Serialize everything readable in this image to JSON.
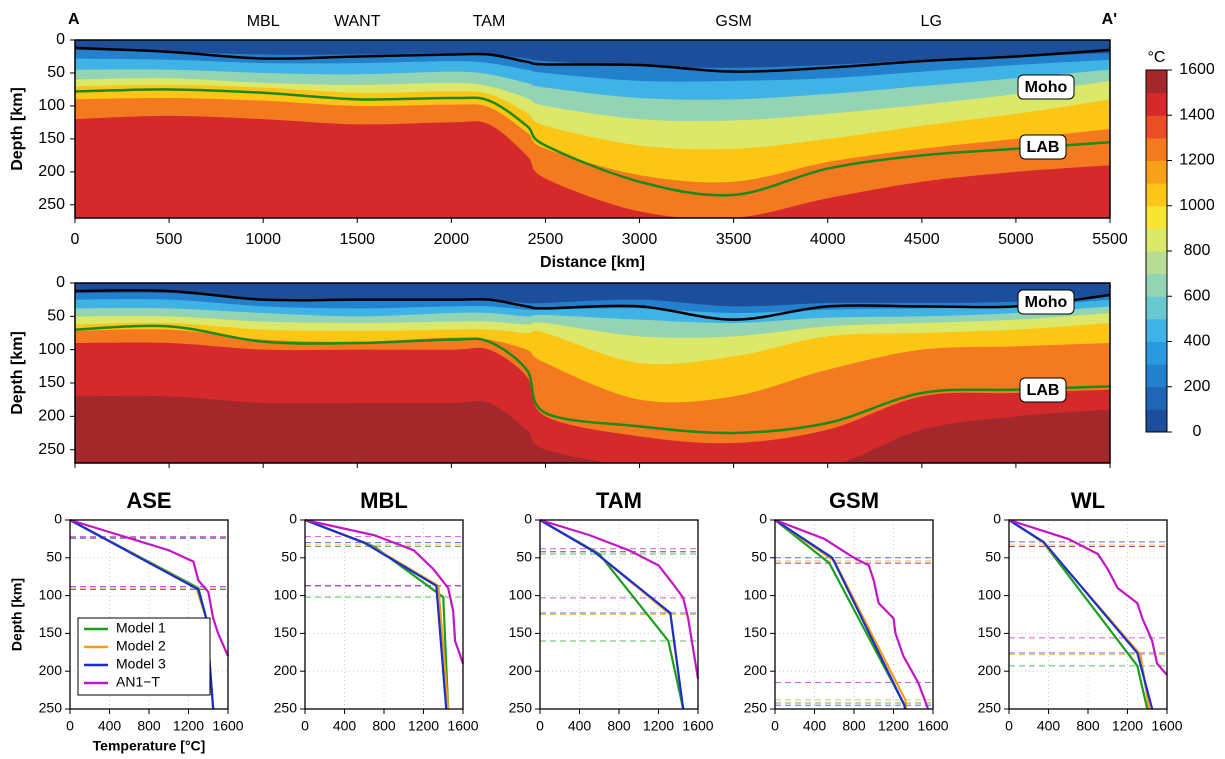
{
  "chart_data": [
    {
      "type": "section",
      "y_label": "Depth [km]",
      "x_label": "Distance [km]",
      "show_xtick_labels": true,
      "xlim": [
        0,
        5500
      ],
      "xticks": [
        0,
        500,
        1000,
        1500,
        2000,
        2500,
        3000,
        3500,
        4000,
        4500,
        5000,
        5500
      ],
      "ylim": [
        0,
        270
      ],
      "y_inverted": true,
      "yticks": [
        0,
        50,
        100,
        150,
        200,
        250
      ],
      "end_labels": [
        "A",
        "A'"
      ],
      "locations": [
        {
          "label": "MBL",
          "x": 1000
        },
        {
          "label": "WANT",
          "x": 1500
        },
        {
          "label": "TAM",
          "x": 2200
        },
        {
          "label": "GSM",
          "x": 3500
        },
        {
          "label": "LG",
          "x": 4550
        }
      ],
      "x": [
        0,
        500,
        1000,
        1500,
        2000,
        2200,
        2400,
        2500,
        3000,
        3500,
        4000,
        4500,
        5000,
        5500
      ],
      "base_color": "#1d4e9c",
      "isotherms": [
        {
          "color": "#2280cc",
          "values": [
            15,
            18,
            22,
            22,
            20,
            22,
            28,
            32,
            40,
            42,
            38,
            30,
            25,
            20
          ]
        },
        {
          "color": "#3fb3e5",
          "values": [
            28,
            30,
            35,
            35,
            32,
            35,
            45,
            50,
            62,
            62,
            58,
            48,
            38,
            30
          ]
        },
        {
          "color": "#93d4b5",
          "values": [
            45,
            45,
            50,
            52,
            48,
            52,
            65,
            72,
            88,
            90,
            82,
            70,
            58,
            45
          ]
        },
        {
          "color": "#dbe86a",
          "values": [
            60,
            58,
            65,
            68,
            65,
            70,
            88,
            100,
            120,
            122,
            112,
            98,
            82,
            62
          ]
        },
        {
          "color": "#fcc615",
          "values": [
            70,
            68,
            72,
            80,
            78,
            82,
            110,
            130,
            160,
            165,
            150,
            130,
            112,
            90
          ]
        },
        {
          "color": "#f47a20",
          "values": [
            90,
            88,
            92,
            100,
            98,
            102,
            140,
            165,
            205,
            215,
            185,
            165,
            150,
            135
          ]
        },
        {
          "color": "#d42a2b",
          "values": [
            120,
            115,
            120,
            128,
            125,
            128,
            175,
            210,
            260,
            270,
            240,
            215,
            200,
            190
          ]
        }
      ],
      "moho": {
        "name": "Moho",
        "color": "#000000",
        "values": [
          12,
          18,
          28,
          25,
          22,
          22,
          33,
          37,
          38,
          48,
          42,
          32,
          25,
          15
        ]
      },
      "lab": {
        "name": "LAB",
        "color": "#1a8a1a",
        "values": [
          78,
          75,
          80,
          90,
          88,
          92,
          130,
          160,
          215,
          235,
          195,
          175,
          165,
          155
        ]
      }
    },
    {
      "type": "section",
      "y_label": "Depth [km]",
      "show_xtick_labels": false,
      "xlim": [
        0,
        5500
      ],
      "xticks": [
        0,
        500,
        1000,
        1500,
        2000,
        2500,
        3000,
        3500,
        4000,
        4500,
        5000,
        5500
      ],
      "ylim": [
        0,
        270
      ],
      "y_inverted": true,
      "yticks": [
        0,
        50,
        100,
        150,
        200,
        250
      ],
      "x": [
        0,
        500,
        1000,
        1500,
        2000,
        2200,
        2400,
        2500,
        3000,
        3500,
        4000,
        4500,
        5000,
        5500
      ],
      "base_color": "#1d4e9c",
      "isotherms": [
        {
          "color": "#2280cc",
          "values": [
            15,
            15,
            25,
            25,
            25,
            25,
            30,
            30,
            25,
            35,
            30,
            30,
            28,
            18
          ]
        },
        {
          "color": "#3fb3e5",
          "values": [
            25,
            25,
            35,
            38,
            35,
            35,
            40,
            40,
            38,
            45,
            40,
            38,
            35,
            25
          ]
        },
        {
          "color": "#93d4b5",
          "values": [
            38,
            38,
            45,
            50,
            45,
            45,
            50,
            48,
            55,
            60,
            52,
            50,
            45,
            35
          ]
        },
        {
          "color": "#dbe86a",
          "values": [
            50,
            50,
            58,
            60,
            58,
            58,
            62,
            60,
            80,
            80,
            65,
            60,
            55,
            45
          ]
        },
        {
          "color": "#fcc615",
          "values": [
            62,
            60,
            70,
            72,
            70,
            70,
            75,
            75,
            120,
            110,
            80,
            75,
            70,
            60
          ]
        },
        {
          "color": "#f47a20",
          "values": [
            72,
            70,
            85,
            88,
            82,
            85,
            100,
            120,
            175,
            170,
            130,
            100,
            95,
            90
          ]
        },
        {
          "color": "#d42a2b",
          "values": [
            90,
            90,
            100,
            100,
            100,
            100,
            140,
            200,
            230,
            240,
            220,
            170,
            165,
            160
          ]
        },
        {
          "color": "#a3282c",
          "values": [
            170,
            170,
            180,
            180,
            180,
            180,
            220,
            250,
            275,
            275,
            275,
            220,
            200,
            190
          ]
        }
      ],
      "moho": {
        "name": "Moho",
        "color": "#000000",
        "values": [
          12,
          12,
          25,
          25,
          25,
          25,
          35,
          38,
          35,
          55,
          35,
          35,
          35,
          18
        ]
      },
      "lab": {
        "name": "LAB",
        "color": "#1a8a1a",
        "values": [
          70,
          65,
          88,
          90,
          85,
          88,
          130,
          195,
          215,
          225,
          210,
          165,
          160,
          155
        ]
      }
    },
    {
      "type": "colorbar",
      "label": "°C",
      "lim": [
        0,
        1600
      ],
      "ticks": [
        0,
        200,
        400,
        600,
        800,
        1000,
        1200,
        1400,
        1600
      ],
      "colors": [
        "#1d4e9c",
        "#1f66b5",
        "#2280cc",
        "#2a9ade",
        "#3fb3e5",
        "#6cc8d0",
        "#93d4b5",
        "#b8de95",
        "#dbe86a",
        "#f7e535",
        "#fcc615",
        "#f9a01a",
        "#f47a20",
        "#e94e25",
        "#d42a2b",
        "#a3282c"
      ]
    },
    {
      "type": "profile",
      "title": "ASE",
      "y_label": "Depth [km]",
      "x_label": "Temperature [°C]",
      "grid": true,
      "xlim": [
        0,
        1600
      ],
      "xticks": [
        0,
        400,
        800,
        1200,
        1600
      ],
      "ylim": [
        0,
        250
      ],
      "y_inverted": true,
      "yticks": [
        0,
        50,
        100,
        150,
        200,
        250
      ],
      "series": [
        {
          "name": "Model 1",
          "color": "#1aa01a",
          "x": [
            0,
            1300,
            1380,
            1450
          ],
          "y": [
            0,
            90,
            130,
            250
          ],
          "moho": 24,
          "lab": 90
        },
        {
          "name": "Model 2",
          "color": "#f39c12",
          "x": [
            0,
            1280,
            1380,
            1450
          ],
          "y": [
            0,
            90,
            130,
            250
          ],
          "moho": 23,
          "lab": 90
        },
        {
          "name": "Model 3",
          "color": "#1a2fd0",
          "x": [
            0,
            1300,
            1380,
            1450
          ],
          "y": [
            0,
            92,
            130,
            250
          ],
          "moho": 24,
          "lab": 92
        },
        {
          "name": "AN1−T",
          "color": "#c414c8",
          "x": [
            0,
            500,
            1000,
            1250,
            1300,
            1400,
            1450,
            1500,
            1600
          ],
          "y": [
            0,
            20,
            40,
            55,
            80,
            95,
            130,
            150,
            180
          ],
          "moho": 22,
          "lab": 88
        }
      ]
    },
    {
      "type": "profile",
      "title": "MBL",
      "grid": true,
      "xlim": [
        0,
        1600
      ],
      "xticks": [
        0,
        400,
        800,
        1200,
        1600
      ],
      "ylim": [
        0,
        250
      ],
      "y_inverted": true,
      "yticks": [
        0,
        50,
        100,
        150,
        200,
        250
      ],
      "series": [
        {
          "color": "#1aa01a",
          "x": [
            0,
            700,
            1400,
            1450
          ],
          "y": [
            0,
            35,
            102,
            250
          ],
          "moho": 35,
          "lab": 102
        },
        {
          "color": "#f39c12",
          "x": [
            0,
            650,
            1350,
            1450
          ],
          "y": [
            0,
            33,
            87,
            250
          ],
          "moho": 33,
          "lab": 87
        },
        {
          "color": "#1a2fd0",
          "x": [
            0,
            600,
            1330,
            1430
          ],
          "y": [
            0,
            30,
            87,
            250
          ],
          "moho": 30,
          "lab": 87
        },
        {
          "color": "#c414c8",
          "x": [
            0,
            700,
            1100,
            1300,
            1450,
            1500,
            1520,
            1600
          ],
          "y": [
            0,
            20,
            40,
            65,
            90,
            120,
            160,
            190
          ],
          "moho": 22,
          "lab": 87
        }
      ]
    },
    {
      "type": "profile",
      "title": "TAM",
      "grid": true,
      "xlim": [
        0,
        1600
      ],
      "xticks": [
        0,
        400,
        800,
        1200,
        1600
      ],
      "ylim": [
        0,
        250
      ],
      "y_inverted": true,
      "yticks": [
        0,
        50,
        100,
        150,
        200,
        250
      ],
      "series": [
        {
          "color": "#1aa01a",
          "x": [
            0,
            600,
            1300,
            1450
          ],
          "y": [
            0,
            45,
            160,
            250
          ],
          "moho": 45,
          "lab": 160
        },
        {
          "color": "#f39c12",
          "x": [
            0,
            550,
            1320,
            1450
          ],
          "y": [
            0,
            42,
            125,
            250
          ],
          "moho": 42,
          "lab": 125
        },
        {
          "color": "#1a2fd0",
          "x": [
            0,
            550,
            1320,
            1450
          ],
          "y": [
            0,
            42,
            123,
            250
          ],
          "moho": 42,
          "lab": 123
        },
        {
          "color": "#c414c8",
          "x": [
            0,
            500,
            900,
            1200,
            1350,
            1450,
            1500,
            1600
          ],
          "y": [
            0,
            20,
            40,
            60,
            85,
            103,
            130,
            210
          ],
          "moho": 38,
          "lab": 103
        }
      ]
    },
    {
      "type": "profile",
      "title": "GSM",
      "grid": true,
      "xlim": [
        0,
        1600
      ],
      "xticks": [
        0,
        400,
        800,
        1200,
        1600
      ],
      "ylim": [
        0,
        250
      ],
      "y_inverted": true,
      "yticks": [
        0,
        50,
        100,
        150,
        200,
        250
      ],
      "series": [
        {
          "color": "#1aa01a",
          "x": [
            0,
            550,
            1300,
            1320
          ],
          "y": [
            0,
            57,
            242,
            250
          ],
          "moho": 57,
          "lab": 242
        },
        {
          "color": "#f39c12",
          "x": [
            0,
            600,
            1320,
            1330
          ],
          "y": [
            0,
            54,
            238,
            250
          ],
          "moho": 54,
          "lab": 238
        },
        {
          "color": "#1a2fd0",
          "x": [
            0,
            580,
            1310,
            1320
          ],
          "y": [
            0,
            50,
            245,
            250
          ],
          "moho": 50,
          "lab": 245
        },
        {
          "color": "#c414c8",
          "x": [
            0,
            500,
            800,
            950,
            1000,
            1050,
            1200,
            1220,
            1300,
            1450,
            1550
          ],
          "y": [
            0,
            25,
            50,
            60,
            80,
            110,
            130,
            150,
            180,
            215,
            250
          ],
          "moho": 57,
          "lab": 215
        }
      ]
    },
    {
      "type": "profile",
      "title": "WL",
      "grid": true,
      "xlim": [
        0,
        1600
      ],
      "xticks": [
        0,
        400,
        800,
        1200,
        1600
      ],
      "ylim": [
        0,
        250
      ],
      "y_inverted": true,
      "yticks": [
        0,
        50,
        100,
        150,
        200,
        250
      ],
      "series": [
        {
          "color": "#1aa01a",
          "x": [
            0,
            350,
            1300,
            1400
          ],
          "y": [
            0,
            30,
            193,
            250
          ],
          "moho": 35,
          "lab": 193
        },
        {
          "color": "#f39c12",
          "x": [
            0,
            350,
            1330,
            1420
          ],
          "y": [
            0,
            30,
            178,
            250
          ],
          "moho": 33,
          "lab": 178
        },
        {
          "color": "#1a2fd0",
          "x": [
            0,
            350,
            1300,
            1450
          ],
          "y": [
            0,
            29,
            176,
            250
          ],
          "moho": 29,
          "lab": 176
        },
        {
          "color": "#c414c8",
          "x": [
            0,
            600,
            900,
            1000,
            1100,
            1300,
            1350,
            1450,
            1500,
            1600
          ],
          "y": [
            0,
            25,
            45,
            65,
            90,
            110,
            130,
            160,
            190,
            205
          ],
          "moho": 35,
          "lab": 156
        }
      ]
    }
  ]
}
